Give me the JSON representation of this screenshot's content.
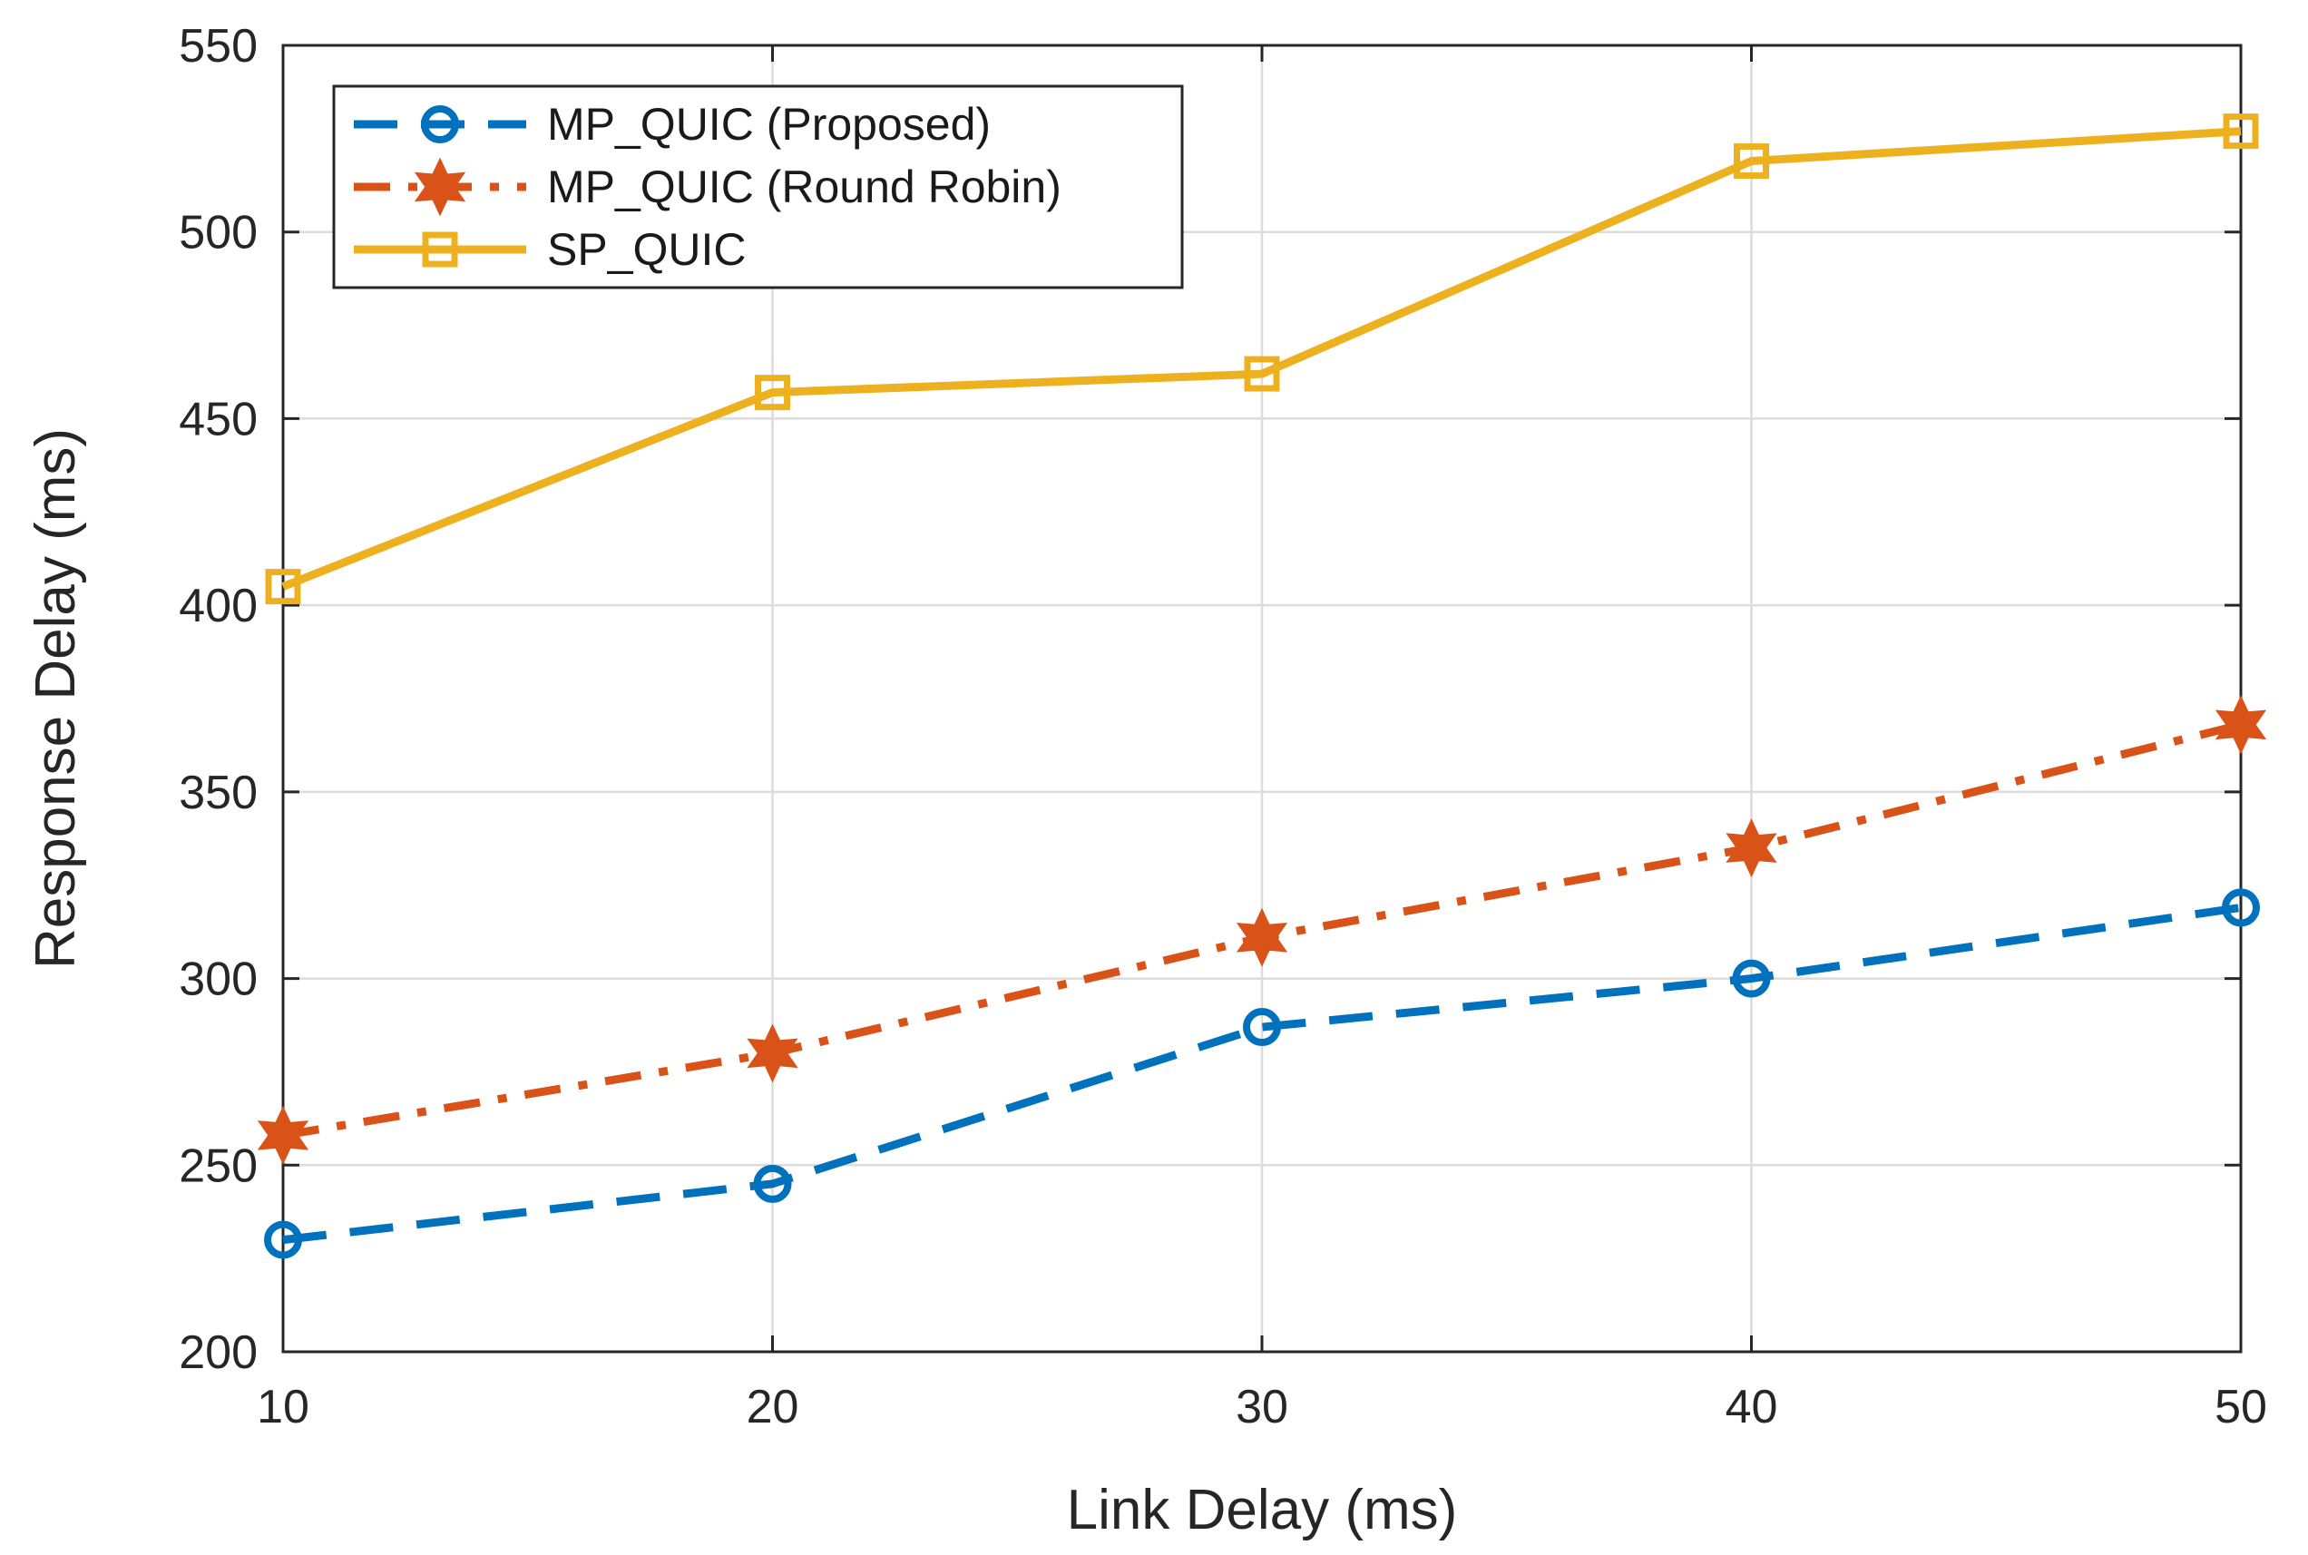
{
  "chart_data": {
    "type": "line",
    "title": "",
    "xlabel": "Link Delay (ms)",
    "ylabel": "Response Delay (ms)",
    "x": [
      10,
      20,
      30,
      40,
      50
    ],
    "xlim": [
      10,
      50
    ],
    "ylim": [
      200,
      550
    ],
    "xticks": [
      10,
      20,
      30,
      40,
      50
    ],
    "yticks": [
      200,
      250,
      300,
      350,
      400,
      450,
      500,
      550
    ],
    "grid": true,
    "legend_position": "top-left",
    "series": [
      {
        "name": "MP_QUIC (Proposed)",
        "values": [
          230,
          245,
          287,
          300,
          319
        ],
        "color": "#0072BD",
        "line_style": "dashed",
        "marker": "circle"
      },
      {
        "name": "MP_QUIC (Round Robin)",
        "values": [
          258,
          280,
          311,
          335,
          368
        ],
        "color": "#D95319",
        "line_style": "dash-dot",
        "marker": "hexagram"
      },
      {
        "name": "SP_QUIC",
        "values": [
          405,
          457,
          462,
          519,
          527
        ],
        "color": "#EDB120",
        "line_style": "solid",
        "marker": "square"
      }
    ]
  }
}
